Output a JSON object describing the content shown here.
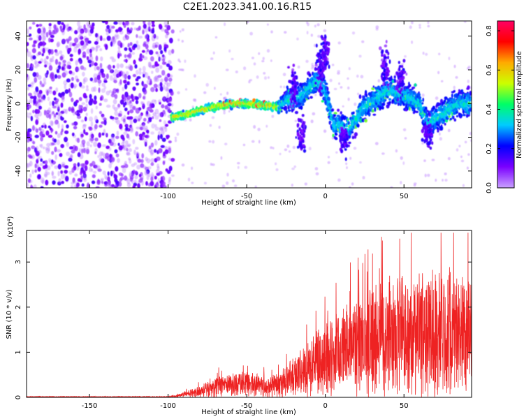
{
  "title": "C2E1.2023.341.00.16.R15",
  "chart_data": [
    {
      "type": "heatmap",
      "xlabel": "Height of straight line (km)",
      "ylabel": "Frequency (Hz)",
      "xlim": [
        -190,
        93
      ],
      "ylim": [
        -50,
        49
      ],
      "x_ticks": [
        -150,
        -100,
        -50,
        0,
        50
      ],
      "y_ticks": [
        -40,
        -20,
        0,
        20,
        40
      ],
      "colorbar": {
        "label": "Normalized spectral amplitude",
        "range": [
          0,
          0.85
        ],
        "ticks": [
          "0.0",
          "0.2",
          "0.4",
          "0.6",
          "0.8"
        ],
        "colormap": [
          "#c9a0ff",
          "#7a00ff",
          "#0000ff",
          "#00ccff",
          "#00ff66",
          "#ccff00",
          "#ffaa00",
          "#ff0000",
          "#ff0066"
        ]
      },
      "features": {
        "noise_region_x": [
          -190,
          -97
        ],
        "ridge_points": [
          [
            -98,
            -8
          ],
          [
            -90,
            -7
          ],
          [
            -80,
            -4
          ],
          [
            -70,
            -2
          ],
          [
            -60,
            0
          ],
          [
            -50,
            0
          ],
          [
            -40,
            -1
          ],
          [
            -30,
            -2
          ],
          [
            -25,
            2
          ],
          [
            -15,
            5
          ],
          [
            -5,
            14
          ],
          [
            0,
            8
          ],
          [
            5,
            -12
          ],
          [
            15,
            -15
          ],
          [
            25,
            -2
          ],
          [
            40,
            8
          ],
          [
            50,
            5
          ],
          [
            60,
            0
          ],
          [
            65,
            -12
          ],
          [
            75,
            -6
          ],
          [
            85,
            0
          ],
          [
            93,
            0
          ]
        ]
      }
    },
    {
      "type": "line",
      "xlabel": "Height of straight line (km)",
      "ylabel": "SNR (10 * v/v)",
      "y_multiplier": "(x10⁴)",
      "y_exponent": "4",
      "xlim": [
        -190,
        93
      ],
      "ylim": [
        0,
        3.7
      ],
      "x_ticks": [
        -150,
        -100,
        -50,
        0,
        50
      ],
      "y_ticks": [
        0,
        1,
        2,
        3
      ],
      "series": [
        {
          "color": "#ee2222",
          "envelope": [
            [
              -190,
              0.02
            ],
            [
              -100,
              0.02
            ],
            [
              -95,
              0.05
            ],
            [
              -85,
              0.2
            ],
            [
              -75,
              0.35
            ],
            [
              -65,
              0.5
            ],
            [
              -55,
              0.6
            ],
            [
              -45,
              0.55
            ],
            [
              -35,
              0.5
            ],
            [
              -25,
              0.7
            ],
            [
              -15,
              1.1
            ],
            [
              -5,
              1.5
            ],
            [
              5,
              1.8
            ],
            [
              15,
              2.1
            ],
            [
              25,
              2.3
            ],
            [
              35,
              2.6
            ],
            [
              45,
              2.8
            ],
            [
              55,
              2.7
            ],
            [
              65,
              2.8
            ],
            [
              75,
              3.0
            ],
            [
              85,
              2.9
            ],
            [
              93,
              2.6
            ]
          ]
        }
      ]
    }
  ]
}
